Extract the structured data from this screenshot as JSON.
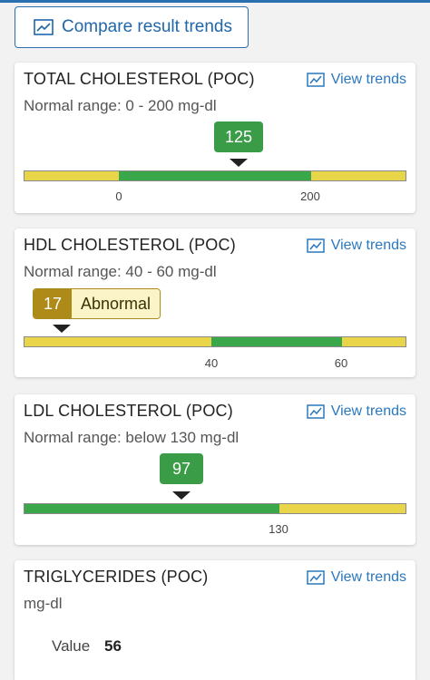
{
  "header": {
    "compare_label": "Compare result trends"
  },
  "view_trends_label": "View trends",
  "colors": {
    "accent": "#2a78bf",
    "normal_green": "#3aa84a",
    "out_of_range_yellow": "#e8d54a",
    "abnormal_gold": "#ae8a19"
  },
  "cards": {
    "total": {
      "title": "TOTAL CHOLESTEROL (POC)",
      "range": "Normal range: 0 - 200 mg-dl",
      "value": "125",
      "tick_low": "0",
      "tick_high": "200"
    },
    "hdl": {
      "title": "HDL CHOLESTEROL (POC)",
      "range": "Normal range: 40 - 60 mg-dl",
      "value": "17",
      "status": "Abnormal",
      "tick_low": "40",
      "tick_high": "60"
    },
    "ldl": {
      "title": "LDL CHOLESTEROL (POC)",
      "range": "Normal range: below 130 mg-dl",
      "value": "97",
      "tick_high": "130"
    },
    "trig": {
      "title": "TRIGLYCERIDES (POC)",
      "units": "mg-dl",
      "value_label": "Value",
      "value": "56"
    }
  }
}
